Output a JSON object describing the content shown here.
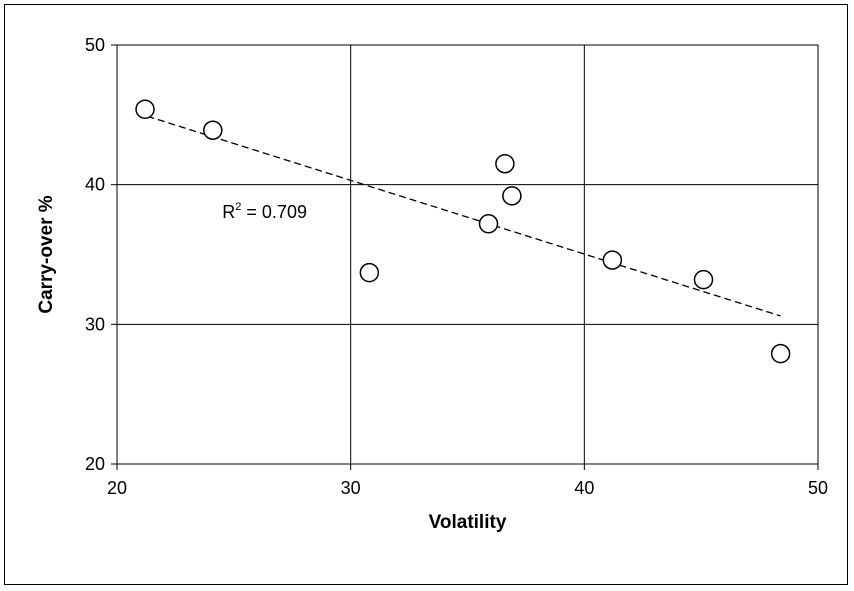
{
  "chart_data": {
    "type": "scatter",
    "xlabel": "Volatility",
    "ylabel": "Carry-over %",
    "xlim": [
      20,
      50
    ],
    "ylim": [
      20,
      50
    ],
    "x_ticks": [
      "20",
      "30",
      "40",
      "50"
    ],
    "y_ticks": [
      "20",
      "30",
      "40",
      "50"
    ],
    "grid": true,
    "points": [
      {
        "x": 21.2,
        "y": 45.4
      },
      {
        "x": 24.1,
        "y": 43.9
      },
      {
        "x": 30.8,
        "y": 33.7
      },
      {
        "x": 35.9,
        "y": 37.2
      },
      {
        "x": 36.6,
        "y": 41.5
      },
      {
        "x": 36.9,
        "y": 39.2
      },
      {
        "x": 41.2,
        "y": 34.6
      },
      {
        "x": 45.1,
        "y": 33.2
      },
      {
        "x": 48.4,
        "y": 27.9
      }
    ],
    "trendline": {
      "style": "dashed",
      "x_start": 21.3,
      "x_end": 48.4,
      "y_start": 44.9,
      "y_end": 30.6
    },
    "annotation": {
      "r_label": "R",
      "r_exponent": "2",
      "r_value": " = 0.709",
      "anchor_x": 28.7,
      "anchor_y": 37.6
    },
    "colors": {
      "marker_stroke": "#000000",
      "marker_fill": "#ffffff",
      "grid": "#000000",
      "trendline": "#000000"
    }
  }
}
